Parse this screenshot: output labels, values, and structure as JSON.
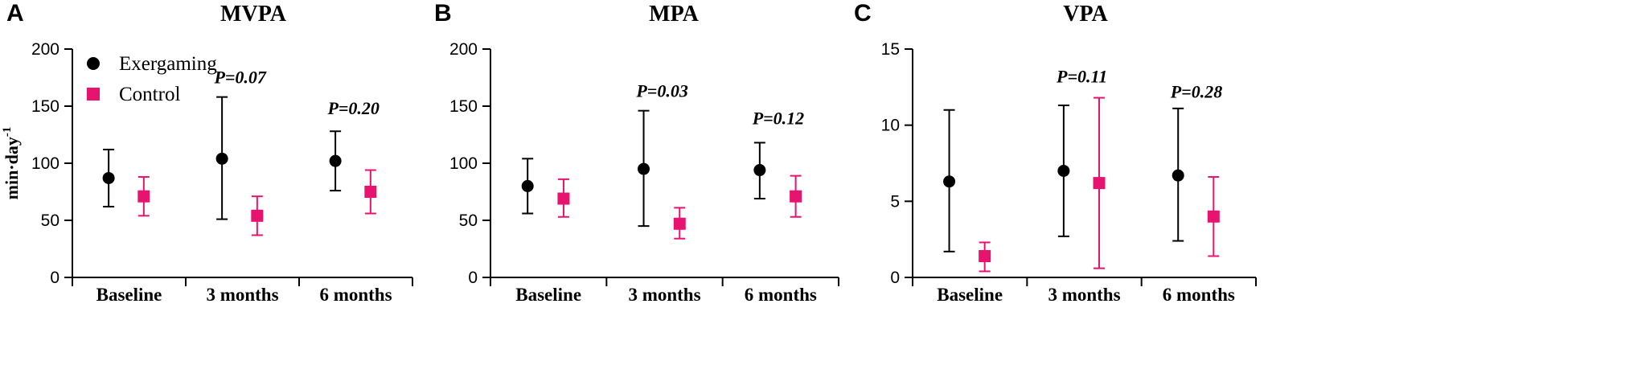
{
  "colors": {
    "exergaming": "#000000",
    "control": "#E6136F",
    "axis": "#000000"
  },
  "legend": {
    "exergaming": "Exergaming",
    "control": "Control"
  },
  "y_axis_label": {
    "base": "min·day",
    "superscript": "-1"
  },
  "chart_data": [
    {
      "type": "scatter",
      "panel": "A",
      "title": "MVPA",
      "ylabel": "min·day-1",
      "ylim": [
        0,
        200
      ],
      "yticks": [
        0,
        50,
        100,
        150,
        200
      ],
      "tick_labels": [
        "0",
        "50",
        "100",
        "150",
        "200"
      ],
      "categories": [
        "Baseline",
        "3 months",
        "6 months"
      ],
      "series": [
        {
          "name": "Exergaming",
          "marker": "circle",
          "values": [
            87,
            104,
            102
          ],
          "lower": [
            62,
            51,
            76
          ],
          "upper": [
            112,
            158,
            128
          ]
        },
        {
          "name": "Control",
          "marker": "square",
          "values": [
            71,
            54,
            75
          ],
          "lower": [
            54,
            37,
            56
          ],
          "upper": [
            88,
            71,
            94
          ]
        }
      ],
      "annotations": [
        "",
        "P=0.07",
        "P=0.20"
      ],
      "annotation_values": [
        null,
        170,
        143
      ]
    },
    {
      "type": "scatter",
      "panel": "B",
      "title": "MPA",
      "ylabel": "",
      "ylim": [
        0,
        200
      ],
      "yticks": [
        0,
        50,
        100,
        150,
        200
      ],
      "tick_labels": [
        "0",
        "50",
        "100",
        "150",
        "200"
      ],
      "categories": [
        "Baseline",
        "3 months",
        "6 months"
      ],
      "series": [
        {
          "name": "Exergaming",
          "marker": "circle",
          "values": [
            80,
            95,
            94
          ],
          "lower": [
            56,
            45,
            69
          ],
          "upper": [
            104,
            146,
            118
          ]
        },
        {
          "name": "Control",
          "marker": "square",
          "values": [
            69,
            47,
            71
          ],
          "lower": [
            53,
            34,
            53
          ],
          "upper": [
            86,
            61,
            89
          ]
        }
      ],
      "annotations": [
        "",
        "P=0.03",
        "P=0.12"
      ],
      "annotation_values": [
        null,
        158,
        134
      ]
    },
    {
      "type": "scatter",
      "panel": "C",
      "title": "VPA",
      "ylabel": "",
      "ylim": [
        0,
        15
      ],
      "yticks": [
        0,
        5,
        10,
        15
      ],
      "tick_labels": [
        "0",
        "5",
        "10",
        "15"
      ],
      "categories": [
        "Baseline",
        "3 months",
        "6 months"
      ],
      "series": [
        {
          "name": "Exergaming",
          "marker": "circle",
          "values": [
            6.3,
            7.0,
            6.7
          ],
          "lower": [
            1.7,
            2.7,
            2.4
          ],
          "upper": [
            11.0,
            11.3,
            11.1
          ]
        },
        {
          "name": "Control",
          "marker": "square",
          "values": [
            1.4,
            6.2,
            4.0
          ],
          "lower": [
            0.4,
            0.6,
            1.4
          ],
          "upper": [
            2.3,
            11.8,
            6.6
          ]
        }
      ],
      "annotations": [
        "",
        "P=0.11",
        "P=0.28"
      ],
      "annotation_values": [
        null,
        12.8,
        11.8
      ]
    }
  ]
}
